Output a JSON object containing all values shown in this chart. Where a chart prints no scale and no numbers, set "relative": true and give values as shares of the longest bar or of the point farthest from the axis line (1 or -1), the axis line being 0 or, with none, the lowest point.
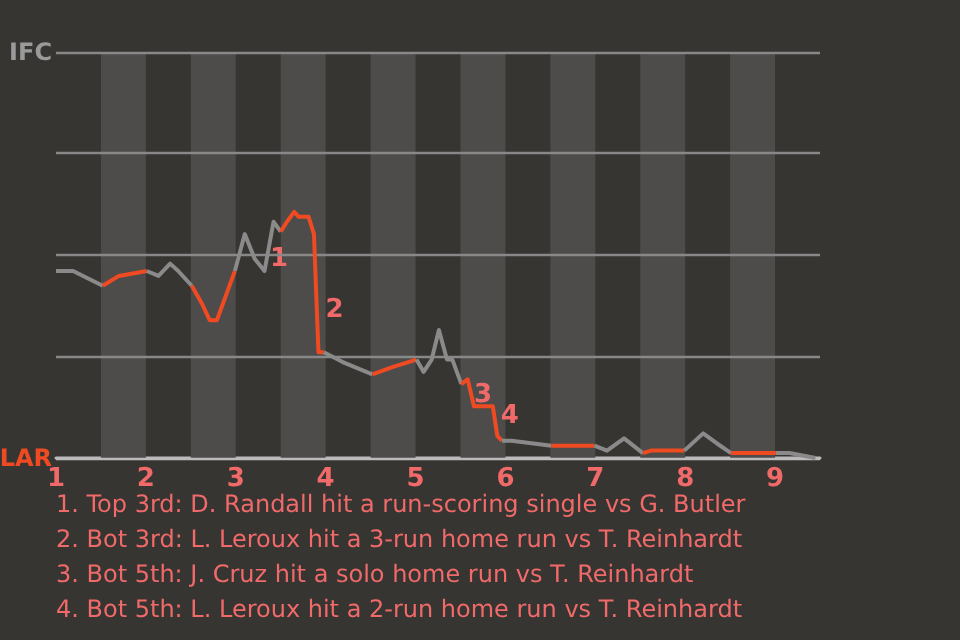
{
  "chart_data": {
    "type": "line",
    "relative": true,
    "xlim": [
      1,
      9.5
    ],
    "xticks": [
      1,
      2,
      3,
      4,
      5,
      6,
      7,
      8,
      9
    ],
    "marker": "none",
    "series": [
      {
        "color": "#8a8a8a",
        "x": [
          1.0,
          1.19,
          1.52
        ],
        "values": [
          0.76,
          0.76,
          0.7
        ]
      },
      {
        "color": "#f04a23",
        "x": [
          1.52,
          1.7,
          2.01
        ],
        "values": [
          0.7,
          0.74,
          0.76
        ]
      },
      {
        "color": "#8a8a8a",
        "x": [
          2.01,
          2.14,
          2.27,
          2.36,
          2.51
        ],
        "values": [
          0.76,
          0.74,
          0.79,
          0.76,
          0.7
        ]
      },
      {
        "color": "#f04a23",
        "x": [
          2.51,
          2.62,
          2.71,
          2.79,
          2.91,
          2.99
        ],
        "values": [
          0.7,
          0.63,
          0.56,
          0.56,
          0.68,
          0.76
        ]
      },
      {
        "color": "#8a8a8a",
        "x": [
          2.99,
          3.1,
          3.21,
          3.32,
          3.42,
          3.5
        ],
        "values": [
          0.76,
          0.91,
          0.81,
          0.76,
          0.96,
          0.92
        ]
      },
      {
        "color": "#f04a23",
        "x": [
          3.5,
          3.57,
          3.65,
          3.7,
          3.81,
          3.87,
          3.9,
          3.92,
          3.98
        ],
        "values": [
          0.92,
          0.96,
          1,
          0.98,
          0.98,
          0.91,
          0.62,
          0.43,
          0.43
        ]
      },
      {
        "color": "#8a8a8a",
        "x": [
          3.98,
          4.19,
          4.52
        ],
        "values": [
          0.43,
          0.39,
          0.34
        ]
      },
      {
        "color": "#f04a23",
        "x": [
          4.52,
          4.75,
          5.01
        ],
        "values": [
          0.34,
          0.37,
          0.4
        ]
      },
      {
        "color": "#8a8a8a",
        "x": [
          5.01,
          5.09,
          5.18,
          5.26,
          5.35,
          5.41,
          5.51
        ],
        "values": [
          0.4,
          0.35,
          0.4,
          0.52,
          0.4,
          0.4,
          0.3
        ]
      },
      {
        "color": "#f04a23",
        "x": [
          5.51,
          5.58,
          5.65,
          5.75,
          5.86,
          5.91,
          5.96
        ],
        "values": [
          0.3,
          0.32,
          0.21,
          0.21,
          0.21,
          0.09,
          0.07
        ]
      },
      {
        "color": "#8a8a8a",
        "x": [
          5.96,
          6.07,
          6.51
        ],
        "values": [
          0.07,
          0.07,
          0.05
        ]
      },
      {
        "color": "#f04a23",
        "x": [
          6.51,
          6.85,
          6.99
        ],
        "values": [
          0.05,
          0.05,
          0.05
        ]
      },
      {
        "color": "#8a8a8a",
        "x": [
          6.99,
          7.13,
          7.32,
          7.53
        ],
        "values": [
          0.05,
          0.03,
          0.08,
          0.02
        ]
      },
      {
        "color": "#f04a23",
        "x": [
          7.53,
          7.62,
          7.99
        ],
        "values": [
          0.02,
          0.03,
          0.03
        ]
      },
      {
        "color": "#8a8a8a",
        "x": [
          7.99,
          8.2,
          8.35,
          8.51
        ],
        "values": [
          0.03,
          0.1,
          0.06,
          0.02
        ]
      },
      {
        "color": "#f04a23",
        "x": [
          8.51,
          9.01
        ],
        "values": [
          0.02,
          0.02
        ]
      },
      {
        "color": "#8a8a8a",
        "x": [
          9.01,
          9.16,
          9.45
        ],
        "values": [
          0.02,
          0.02,
          0
        ]
      }
    ],
    "ref_lines": [
      {
        "axis": "y",
        "value": 0,
        "label": "LAR",
        "color": "#bbbbbb"
      },
      {
        "axis": "y",
        "value": 0.41,
        "label": null,
        "color": "#888888"
      },
      {
        "axis": "y",
        "value": 0.83,
        "label": null,
        "color": "#888888"
      },
      {
        "axis": "y",
        "value": 1.24,
        "label": null,
        "color": "#888888"
      },
      {
        "axis": "y",
        "value": 1.65,
        "label": "IFC",
        "color": "#888888"
      }
    ],
    "bands": [
      {
        "axis": "x",
        "from": 1.5,
        "to": 2,
        "color": "#4d4c4a"
      },
      {
        "axis": "x",
        "from": 2.5,
        "to": 3,
        "color": "#4d4c4a"
      },
      {
        "axis": "x",
        "from": 3.5,
        "to": 4,
        "color": "#4d4c4a"
      },
      {
        "axis": "x",
        "from": 4.5,
        "to": 5,
        "color": "#4d4c4a"
      },
      {
        "axis": "x",
        "from": 5.5,
        "to": 6,
        "color": "#4d4c4a"
      },
      {
        "axis": "x",
        "from": 6.5,
        "to": 7,
        "color": "#4d4c4a"
      },
      {
        "axis": "x",
        "from": 7.5,
        "to": 8,
        "color": "#4d4c4a"
      },
      {
        "axis": "x",
        "from": 8.5,
        "to": 9,
        "color": "#4d4c4a"
      }
    ],
    "annotations": [
      {
        "text": "1",
        "x": 3.48,
        "y": 0.81
      },
      {
        "text": "2",
        "x": 4.1,
        "y": 0.6
      },
      {
        "text": "3",
        "x": 5.75,
        "y": 0.255
      },
      {
        "text": "4",
        "x": 6.05,
        "y": 0.17
      },
      "1. Top 3rd: D. Randall hit a run-scoring single vs G. Butler",
      "2. Bot 3rd: L. Leroux hit a 3-run home run vs T. Reinhardt",
      "3. Bot 5th: J. Cruz hit a solo home run vs T. Reinhardt",
      "4. Bot 5th: L. Leroux hit a 2-run home run vs T. Reinhardt"
    ]
  }
}
